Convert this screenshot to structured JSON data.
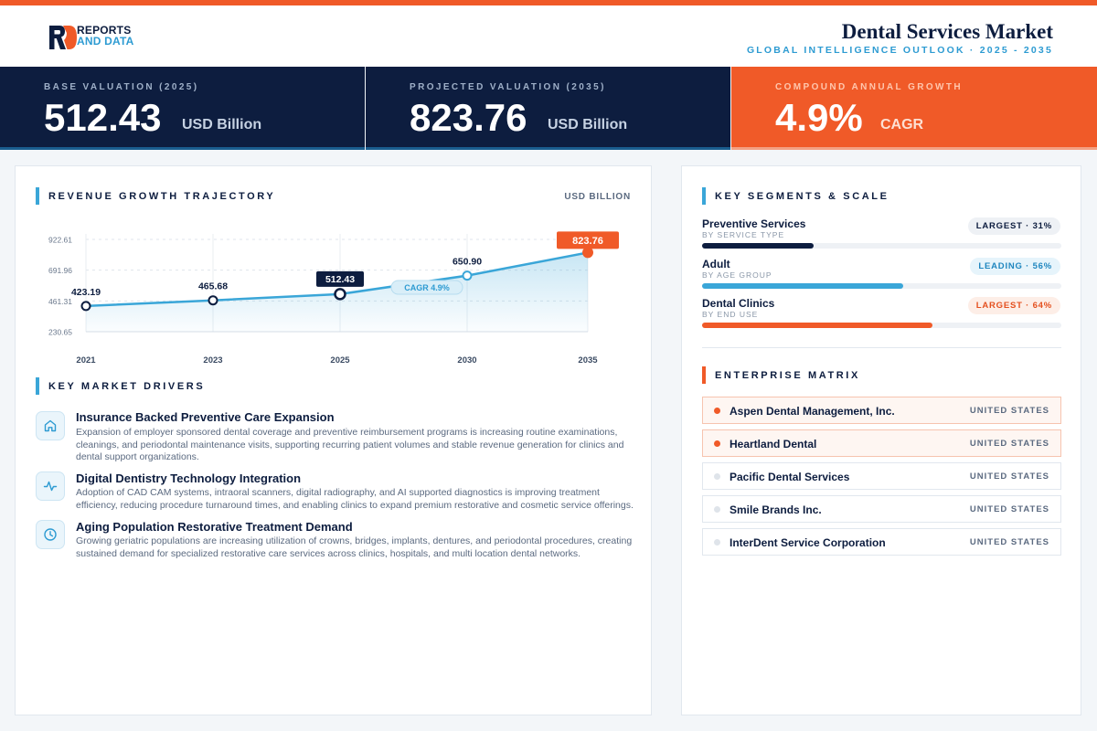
{
  "brand": {
    "line1": "REPORTS",
    "line2": "AND DATA",
    "accent": "#f05a28",
    "navy": "#0d1d3f",
    "blue": "#2d9bd2"
  },
  "header": {
    "title": "Dental Services Market",
    "subtitle": "GLOBAL INTELLIGENCE OUTLOOK  ·  2025 - 2035"
  },
  "kpis": [
    {
      "label": "BASE VALUATION (2025)",
      "value": "512.43",
      "unit": "USD Billion"
    },
    {
      "label": "PROJECTED VALUATION (2035)",
      "value": "823.76",
      "unit": "USD Billion"
    },
    {
      "label": "COMPOUND ANNUAL GROWTH",
      "value": "4.9%",
      "unit": "CAGR"
    }
  ],
  "revenue": {
    "title": "REVENUE GROWTH TRAJECTORY",
    "unit": "USD BILLION"
  },
  "chart_data": {
    "type": "line",
    "x": [
      "2021",
      "2023",
      "2025",
      "2030",
      "2035"
    ],
    "values": [
      423.19,
      465.68,
      512.43,
      650.9,
      823.76
    ],
    "labels": [
      "423.19",
      "465.68",
      "512.43",
      "650.90",
      "823.76"
    ],
    "y_ticks": [
      "922.61",
      "691.96",
      "461.31",
      "230.65"
    ],
    "ylim": [
      230.65,
      922.61
    ],
    "annotation": "CAGR 4.9%",
    "highlight": {
      "2025": "navy",
      "2035": "orange"
    },
    "grid": true,
    "area_fill": true
  },
  "drivers": {
    "title": "KEY MARKET DRIVERS",
    "items": [
      {
        "icon": "home-icon",
        "title": "Insurance Backed Preventive Care Expansion",
        "desc": "Expansion of employer sponsored dental coverage and preventive reimbursement programs is increasing routine examinations, cleanings, and periodontal maintenance visits, supporting recurring patient volumes and stable revenue generation for clinics and dental support organizations."
      },
      {
        "icon": "pulse-icon",
        "title": "Digital Dentistry Technology Integration",
        "desc": "Adoption of CAD CAM systems, intraoral scanners, digital radiography, and AI supported diagnostics is improving treatment efficiency, reducing procedure turnaround times, and enabling clinics to expand premium restorative and cosmetic service offerings."
      },
      {
        "icon": "clock-icon",
        "title": "Aging Population Restorative Treatment Demand",
        "desc": "Growing geriatric populations are increasing utilization of crowns, bridges, implants, dentures, and periodontal procedures, creating sustained demand for specialized restorative care services across clinics, hospitals, and multi location dental networks."
      }
    ]
  },
  "segments": {
    "title": "KEY SEGMENTS & SCALE",
    "items": [
      {
        "name": "Preventive Services",
        "sub": "BY SERVICE TYPE",
        "badge": "LARGEST · 31%",
        "share": 0.31,
        "color": "#0d1d3f",
        "badge_bg": "#eef1f5",
        "badge_fg": "#0d1d3f"
      },
      {
        "name": "Adult",
        "sub": "BY AGE GROUP",
        "badge": "LEADING · 56%",
        "share": 0.56,
        "color": "#3aa6d8",
        "badge_bg": "#e6f4fb",
        "badge_fg": "#1f86bf"
      },
      {
        "name": "Dental Clinics",
        "sub": "BY END USE",
        "badge": "LARGEST · 64%",
        "share": 0.64,
        "color": "#f05a28",
        "badge_bg": "#fdeee7",
        "badge_fg": "#e4501f"
      }
    ]
  },
  "enterprise": {
    "title": "ENTERPRISE MATRIX",
    "items": [
      {
        "name": "Aspen Dental Management, Inc.",
        "country": "UNITED STATES",
        "highlight": true
      },
      {
        "name": "Heartland Dental",
        "country": "UNITED STATES",
        "highlight": true
      },
      {
        "name": "Pacific Dental Services",
        "country": "UNITED STATES",
        "highlight": false
      },
      {
        "name": "Smile Brands Inc.",
        "country": "UNITED STATES",
        "highlight": false
      },
      {
        "name": "InterDent Service Corporation",
        "country": "UNITED STATES",
        "highlight": false
      }
    ]
  }
}
